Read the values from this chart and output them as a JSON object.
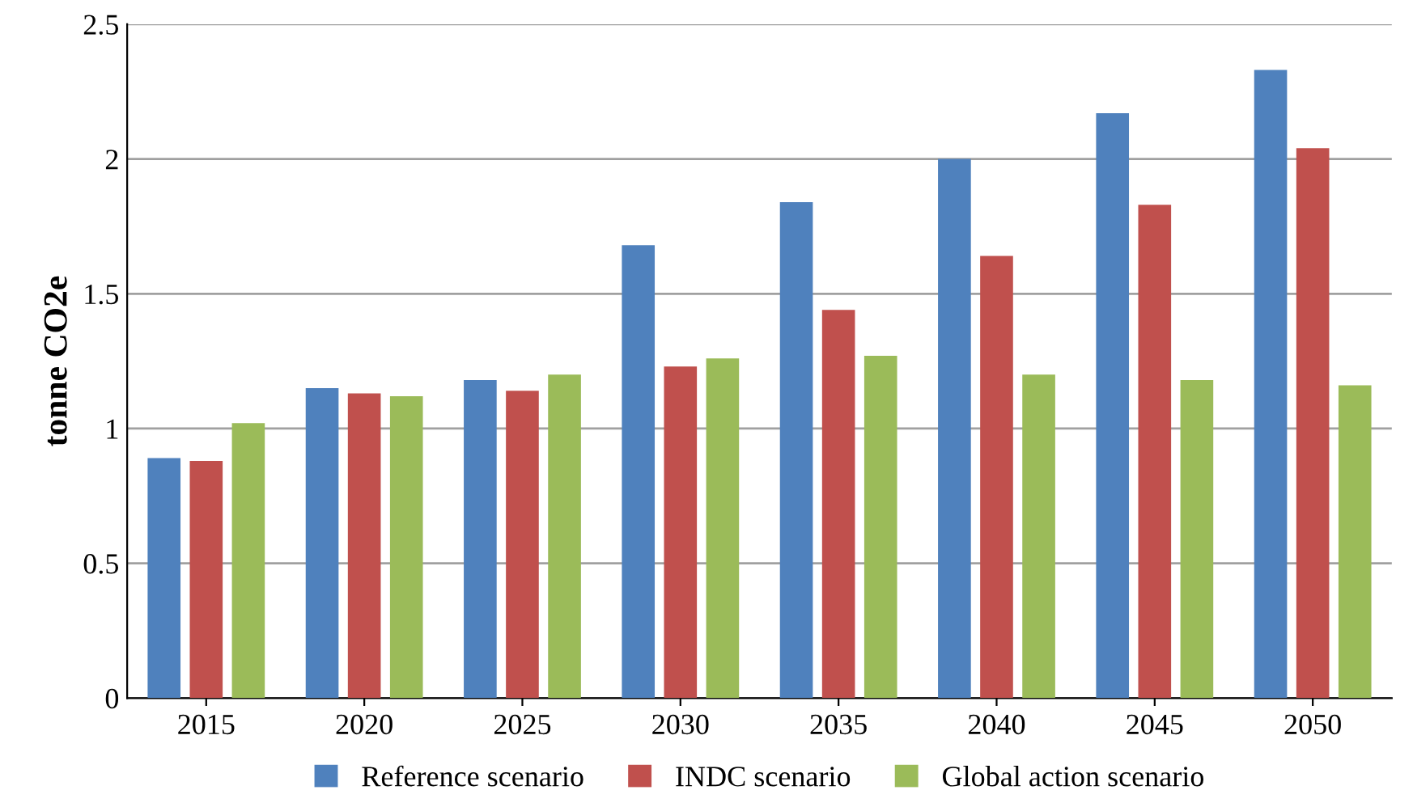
{
  "chart_data": {
    "type": "bar",
    "ylabel": "tonne CO2e",
    "categories": [
      "2015",
      "2020",
      "2025",
      "2030",
      "2035",
      "2040",
      "2045",
      "2050"
    ],
    "series": [
      {
        "name": "Reference scenario",
        "color": "#4f81bd",
        "values": [
          0.89,
          1.15,
          1.18,
          1.68,
          1.84,
          2.0,
          2.17,
          2.33
        ]
      },
      {
        "name": "INDC scenario",
        "color": "#c0504d",
        "values": [
          0.88,
          1.13,
          1.14,
          1.23,
          1.44,
          1.64,
          1.83,
          2.04
        ]
      },
      {
        "name": "Global action scenario",
        "color": "#9bbb59",
        "values": [
          1.02,
          1.12,
          1.2,
          1.26,
          1.27,
          1.2,
          1.18,
          1.16
        ]
      }
    ],
    "ylim": [
      0,
      2.5
    ],
    "yticks": [
      0,
      0.5,
      1,
      1.5,
      2,
      2.5
    ],
    "grid": "y",
    "legend": "bottom"
  }
}
